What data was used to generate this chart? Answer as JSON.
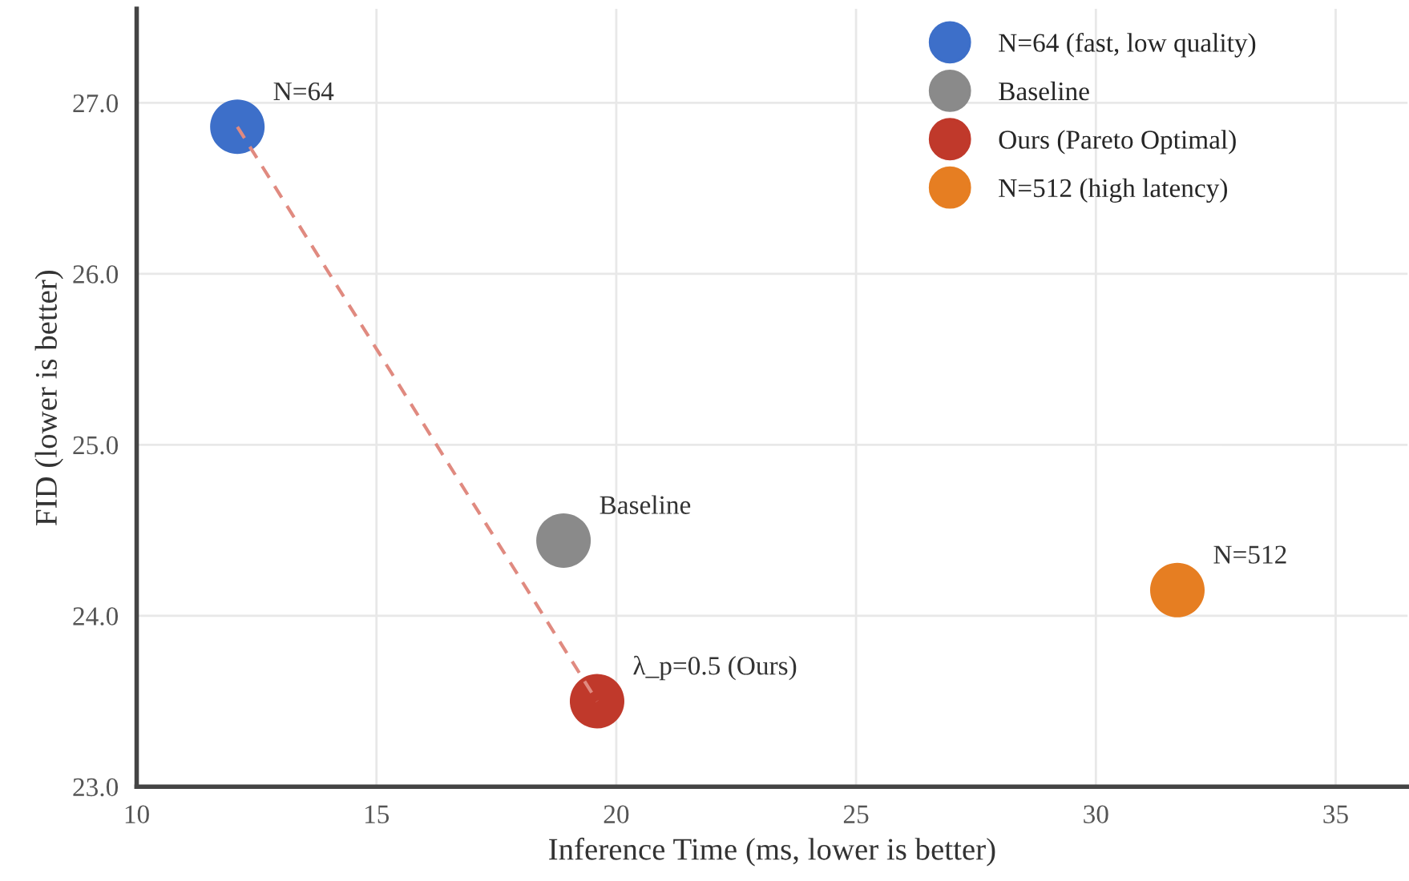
{
  "chart_data": {
    "type": "scatter",
    "xlabel": "Inference Time (ms, lower is better)",
    "ylabel": "FID (lower is better)",
    "xlim": [
      10,
      36.5
    ],
    "xticks": [
      10,
      15,
      20,
      25,
      30,
      35
    ],
    "ylim": [
      23,
      27.55
    ],
    "yticks": [
      {
        "value": 23,
        "label": "23.0"
      },
      {
        "value": 24,
        "label": "24.0"
      },
      {
        "value": 25,
        "label": "25.0"
      },
      {
        "value": 26,
        "label": "26.0"
      },
      {
        "value": 27,
        "label": "27.0"
      }
    ],
    "grid": true,
    "legend": "top right",
    "marker": "circle",
    "series": [
      {
        "type": "line",
        "color": "#e08a80",
        "line_style": "dashed",
        "marker": "none",
        "x": [
          12.1,
          19.6
        ],
        "values": [
          26.86,
          23.5
        ]
      },
      {
        "name": "N=64 (fast, low quality)",
        "color": "#3d6fc9",
        "x": [
          12.1
        ],
        "values": [
          26.86
        ]
      },
      {
        "name": "Baseline",
        "color": "#8a8a8a",
        "x": [
          18.9
        ],
        "values": [
          24.44
        ]
      },
      {
        "name": "Ours (Pareto Optimal)",
        "color": "#c0392b",
        "x": [
          19.6
        ],
        "values": [
          23.5
        ]
      },
      {
        "name": "N=512 (high latency)",
        "color": "#e67e22",
        "x": [
          31.7
        ],
        "values": [
          24.15
        ]
      }
    ],
    "annotations": [
      {
        "text": "N=64",
        "x": 12.1,
        "y": 26.86
      },
      {
        "text": "Baseline",
        "x": 18.9,
        "y": 24.44
      },
      {
        "text": "λ_p=0.5 (Ours)",
        "x": 19.6,
        "y": 23.5
      },
      {
        "text": "N=512",
        "x": 31.7,
        "y": 24.15
      }
    ]
  }
}
